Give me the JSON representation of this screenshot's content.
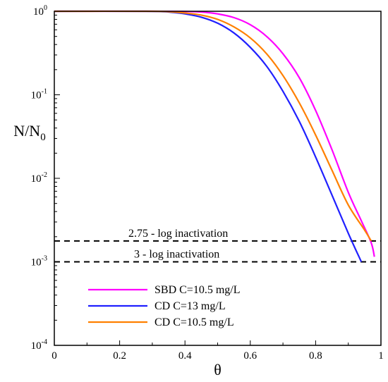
{
  "chart_data": {
    "type": "line",
    "xlabel": "θ",
    "ylabel": {
      "main": "N/N",
      "sub": "0"
    },
    "xlim": [
      0,
      1
    ],
    "ylim": [
      0.0001,
      1
    ],
    "yscale": "log",
    "grid": false,
    "x_ticks": [
      "0",
      "0.2",
      "0.4",
      "0.6",
      "0.8",
      "1"
    ],
    "y_ticks": [
      {
        "value": 1,
        "base": "10",
        "exp": "0"
      },
      {
        "value": 0.1,
        "base": "10",
        "exp": "-1"
      },
      {
        "value": 0.01,
        "base": "10",
        "exp": "-2"
      },
      {
        "value": 0.001,
        "base": "10",
        "exp": "-3"
      },
      {
        "value": 0.0001,
        "base": "10",
        "exp": "-4"
      }
    ],
    "legend_position": "bottom-left",
    "series": [
      {
        "name": "SBD C=10.5 mg/L",
        "color": "#ff00ff",
        "points": [
          [
            0,
            1
          ],
          [
            0.3,
            1
          ],
          [
            0.4,
            0.995
          ],
          [
            0.45,
            0.98
          ],
          [
            0.5,
            0.93
          ],
          [
            0.55,
            0.84
          ],
          [
            0.6,
            0.69
          ],
          [
            0.65,
            0.5
          ],
          [
            0.7,
            0.31
          ],
          [
            0.75,
            0.16
          ],
          [
            0.8,
            0.065
          ],
          [
            0.85,
            0.022
          ],
          [
            0.9,
            0.0068
          ],
          [
            0.94,
            0.0031
          ],
          [
            0.97,
            0.0017
          ],
          [
            0.98,
            0.00115
          ]
        ]
      },
      {
        "name": "CD C=13 mg/L",
        "color": "#2020ff",
        "points": [
          [
            0,
            1
          ],
          [
            0.28,
            1
          ],
          [
            0.35,
            0.98
          ],
          [
            0.4,
            0.93
          ],
          [
            0.45,
            0.85
          ],
          [
            0.5,
            0.72
          ],
          [
            0.55,
            0.55
          ],
          [
            0.6,
            0.37
          ],
          [
            0.65,
            0.22
          ],
          [
            0.7,
            0.11
          ],
          [
            0.75,
            0.048
          ],
          [
            0.8,
            0.018
          ],
          [
            0.85,
            0.0063
          ],
          [
            0.9,
            0.0022
          ],
          [
            0.94,
            0.001
          ]
        ]
      },
      {
        "name": "CD C=10.5 mg/L",
        "color": "#ff8000",
        "points": [
          [
            0,
            1
          ],
          [
            0.3,
            1
          ],
          [
            0.35,
            0.99
          ],
          [
            0.4,
            0.955
          ],
          [
            0.45,
            0.9
          ],
          [
            0.5,
            0.8
          ],
          [
            0.55,
            0.65
          ],
          [
            0.6,
            0.48
          ],
          [
            0.65,
            0.31
          ],
          [
            0.7,
            0.17
          ],
          [
            0.75,
            0.08
          ],
          [
            0.8,
            0.033
          ],
          [
            0.85,
            0.0125
          ],
          [
            0.9,
            0.0048
          ],
          [
            0.95,
            0.0024
          ],
          [
            0.97,
            0.00178
          ]
        ]
      }
    ],
    "reference_lines": [
      {
        "label": "2.75 - log inactivation",
        "y": 0.00178
      },
      {
        "label": "3 - log inactivation",
        "y": 0.001
      }
    ]
  }
}
